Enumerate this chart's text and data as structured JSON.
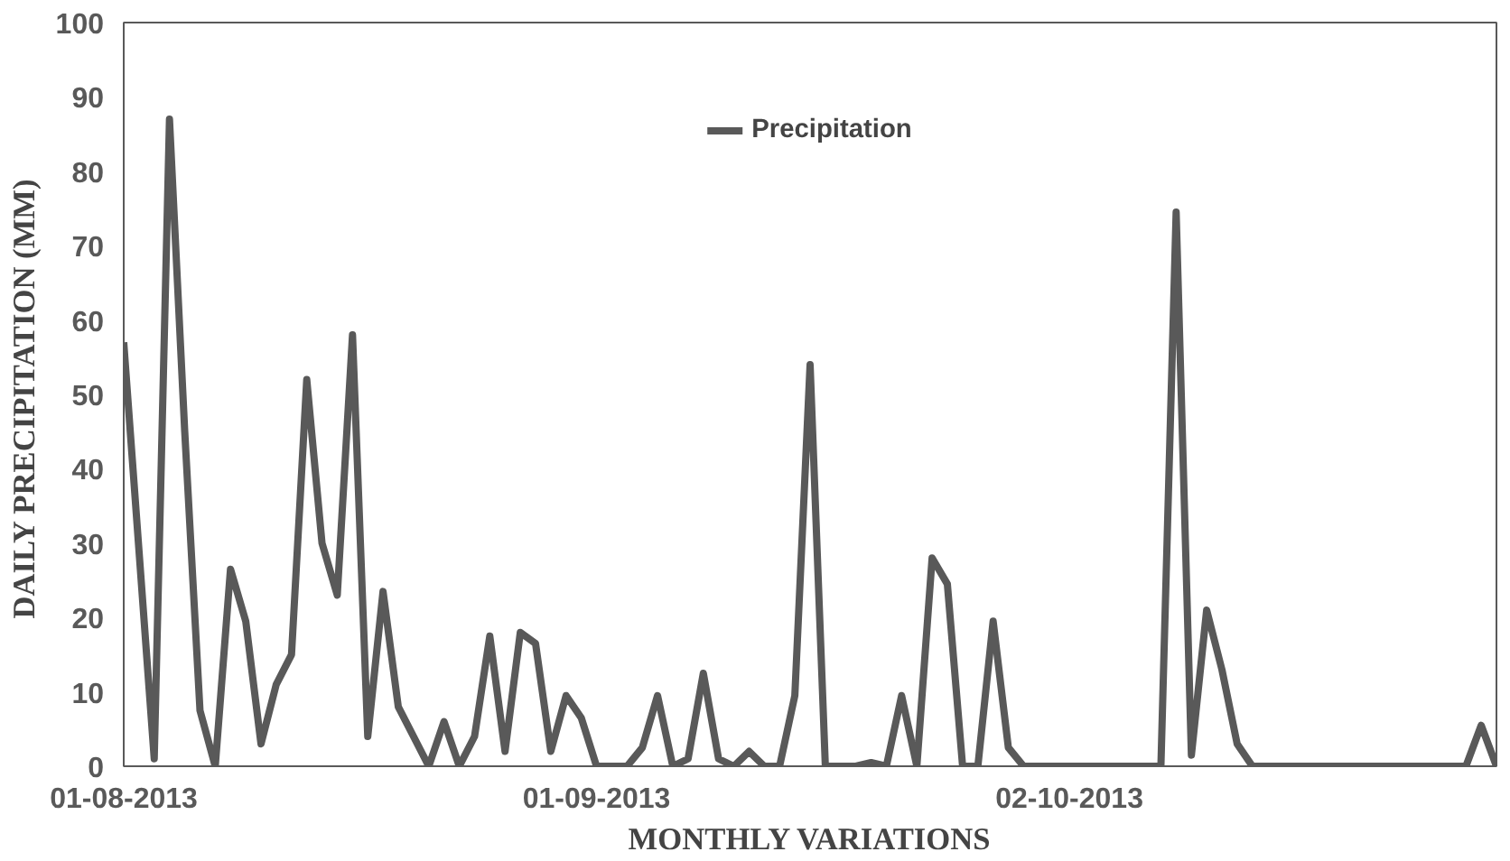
{
  "chart_data": {
    "type": "line",
    "xlabel": "MONTHLY VARIATIONS",
    "ylabel": "DAILY PRECIPITATION  (MM)",
    "x": [
      "2013-08-01",
      "2013-08-02",
      "2013-08-03",
      "2013-08-04",
      "2013-08-05",
      "2013-08-06",
      "2013-08-07",
      "2013-08-08",
      "2013-08-09",
      "2013-08-10",
      "2013-08-11",
      "2013-08-12",
      "2013-08-13",
      "2013-08-14",
      "2013-08-15",
      "2013-08-16",
      "2013-08-17",
      "2013-08-18",
      "2013-08-19",
      "2013-08-20",
      "2013-08-21",
      "2013-08-22",
      "2013-08-23",
      "2013-08-24",
      "2013-08-25",
      "2013-08-26",
      "2013-08-27",
      "2013-08-28",
      "2013-08-29",
      "2013-08-30",
      "2013-08-31",
      "2013-09-01",
      "2013-09-02",
      "2013-09-03",
      "2013-09-04",
      "2013-09-05",
      "2013-09-06",
      "2013-09-07",
      "2013-09-08",
      "2013-09-09",
      "2013-09-10",
      "2013-09-11",
      "2013-09-12",
      "2013-09-13",
      "2013-09-14",
      "2013-09-15",
      "2013-09-16",
      "2013-09-17",
      "2013-09-18",
      "2013-09-19",
      "2013-09-20",
      "2013-09-21",
      "2013-09-22",
      "2013-09-23",
      "2013-09-24",
      "2013-09-25",
      "2013-09-26",
      "2013-09-27",
      "2013-09-28",
      "2013-09-29",
      "2013-09-30",
      "2013-10-01",
      "2013-10-02",
      "2013-10-03",
      "2013-10-04",
      "2013-10-05",
      "2013-10-06",
      "2013-10-07",
      "2013-10-08",
      "2013-10-09",
      "2013-10-10",
      "2013-10-11",
      "2013-10-12",
      "2013-10-13",
      "2013-10-14",
      "2013-10-15",
      "2013-10-16",
      "2013-10-17",
      "2013-10-18",
      "2013-10-19",
      "2013-10-20",
      "2013-10-21",
      "2013-10-22",
      "2013-10-23",
      "2013-10-24",
      "2013-10-25",
      "2013-10-26",
      "2013-10-27",
      "2013-10-28",
      "2013-10-29",
      "2013-10-30"
    ],
    "xlim": [
      "2013-08-01",
      "2013-10-30"
    ],
    "xticks": [
      {
        "value": "2013-08-01",
        "label": "01-08-2013"
      },
      {
        "value": "2013-09-01",
        "label": "01-09-2013"
      },
      {
        "value": "2013-10-02",
        "label": "02-10-2013"
      }
    ],
    "ylim": [
      0,
      100
    ],
    "yticks": [
      0,
      10,
      20,
      30,
      40,
      50,
      60,
      70,
      80,
      90,
      100
    ],
    "grid": false,
    "legend": "top",
    "marker": "none",
    "line_style": "solid",
    "series": [
      {
        "name": "Precipitation",
        "color": "#595959",
        "values": [
          57,
          29,
          1,
          87,
          45,
          7.5,
          0,
          26.5,
          19.5,
          3,
          11,
          15,
          52,
          30,
          23,
          58,
          4,
          23.5,
          8,
          4,
          0,
          6,
          0,
          4,
          17.5,
          2,
          18,
          16.5,
          2,
          9.5,
          6.5,
          0,
          0,
          0,
          2.5,
          9.5,
          0,
          1,
          12.5,
          1,
          0,
          2,
          0,
          0,
          9.5,
          54,
          0,
          0,
          0,
          0.5,
          0,
          9.5,
          0,
          28,
          24.5,
          0,
          0,
          19.5,
          2.5,
          0,
          0,
          0,
          0,
          0,
          0,
          0,
          0,
          0,
          0,
          74.5,
          1.5,
          21,
          13,
          3,
          0,
          0,
          0,
          0,
          0,
          0,
          0,
          0,
          0,
          0,
          0,
          0,
          0,
          0,
          0,
          5.5,
          0
        ]
      }
    ]
  }
}
